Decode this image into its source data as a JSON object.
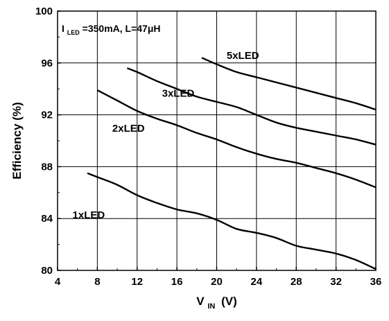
{
  "chart_data": {
    "type": "line",
    "title": "",
    "xlabel": {
      "main": "V",
      "sub": "IN",
      "unit": "(V)"
    },
    "ylabel": "Efficiency (%)",
    "xlim": [
      4,
      36
    ],
    "ylim": [
      80,
      100
    ],
    "xticks": [
      "4",
      "8",
      "12",
      "16",
      "20",
      "24",
      "28",
      "32",
      "36"
    ],
    "yticks": [
      "80",
      "84",
      "88",
      "92",
      "96",
      "100"
    ],
    "grid": true,
    "annotation": {
      "prefix": "I",
      "sub": "LED",
      "text": "=350mA, L=47μH"
    },
    "series": [
      {
        "name": "1xLED",
        "x": [
          7,
          8,
          10,
          12,
          14,
          16,
          18,
          20,
          22,
          24,
          26,
          28,
          30,
          32,
          34,
          36
        ],
        "y": [
          87.5,
          87.2,
          86.6,
          85.8,
          85.2,
          84.7,
          84.4,
          83.9,
          83.2,
          82.9,
          82.5,
          81.9,
          81.6,
          81.3,
          80.8,
          80.1
        ]
      },
      {
        "name": "2xLED",
        "x": [
          8,
          10,
          12,
          14,
          16,
          18,
          20,
          22,
          24,
          26,
          28,
          30,
          32,
          34,
          36
        ],
        "y": [
          93.9,
          93.1,
          92.3,
          91.7,
          91.2,
          90.6,
          90.1,
          89.5,
          89.0,
          88.6,
          88.3,
          87.9,
          87.5,
          87.0,
          86.4
        ]
      },
      {
        "name": "3xLED",
        "x": [
          11,
          12,
          14,
          16,
          18,
          20,
          22,
          24,
          26,
          28,
          30,
          32,
          34,
          36
        ],
        "y": [
          95.6,
          95.3,
          94.6,
          94.0,
          93.4,
          93.0,
          92.6,
          92.0,
          91.4,
          91.0,
          90.7,
          90.4,
          90.1,
          89.7
        ]
      },
      {
        "name": "5xLED",
        "x": [
          18.5,
          20,
          22,
          24,
          26,
          28,
          30,
          32,
          34,
          36
        ],
        "y": [
          96.4,
          95.9,
          95.3,
          94.9,
          94.5,
          94.1,
          93.7,
          93.3,
          92.9,
          92.4
        ]
      }
    ],
    "series_labels": [
      {
        "text": "1xLED",
        "x": 5.5,
        "y": 84.0
      },
      {
        "text": "2xLED",
        "x": 9.5,
        "y": 90.7
      },
      {
        "text": "3xLED",
        "x": 14.5,
        "y": 93.4
      },
      {
        "text": "5xLED",
        "x": 21.0,
        "y": 96.3
      }
    ]
  }
}
